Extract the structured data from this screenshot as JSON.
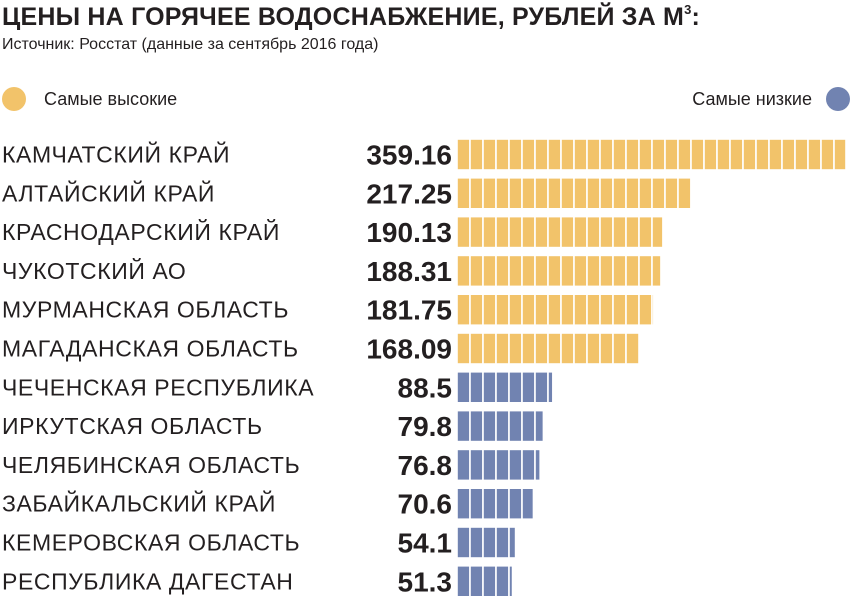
{
  "header": {
    "title": "ЦЕНЫ НА ГОРЯЧЕЕ ВОДОСНАБЖЕНИЕ, РУБЛЕЙ ЗА М",
    "title_sup": "3",
    "title_suffix": ":",
    "source": "Источник: Росстат (данные за сентябрь 2016 года)"
  },
  "legend": {
    "high": "Самые высокие",
    "low": "Самые низкие"
  },
  "colors": {
    "high": "#f2c36a",
    "low": "#7183b1",
    "text": "#231f20"
  },
  "chart_data": {
    "type": "bar",
    "orientation": "horizontal",
    "title": "ЦЕНЫ НА ГОРЯЧЕЕ ВОДОСНАБЖЕНИЕ, РУБЛЕЙ ЗА М3:",
    "categories": [
      "КАМЧАТСКИЙ КРАЙ",
      "АЛТАЙСКИЙ КРАЙ",
      "КРАСНОДАРСКИЙ КРАЙ",
      "ЧУКОТСКИЙ АО",
      "МУРМАНСКАЯ ОБЛАСТЬ",
      "МАГАДАНСКАЯ ОБЛАСТЬ",
      "ЧЕЧЕНСКАЯ РЕСПУБЛИКА",
      "ИРКУТСКАЯ ОБЛАСТЬ",
      "ЧЕЛЯБИНСКАЯ ОБЛАСТЬ",
      "ЗАБАЙКАЛЬСКИЙ КРАЙ",
      "КЕМЕРОВСКАЯ ОБЛАСТЬ",
      "РЕСПУБЛИКА ДАГЕСТАН"
    ],
    "value_labels": [
      "359.16",
      "217.25",
      "190.13",
      "188.31",
      "181.75",
      "168.09",
      "88.5",
      "79.8",
      "76.8",
      "70.6",
      "54.1",
      "51.3"
    ],
    "values": [
      359.16,
      217.25,
      190.13,
      188.31,
      181.75,
      168.09,
      88.5,
      79.8,
      76.8,
      70.6,
      54.1,
      51.3
    ],
    "groups": [
      "high",
      "high",
      "high",
      "high",
      "high",
      "high",
      "low",
      "low",
      "low",
      "low",
      "low",
      "low"
    ],
    "legend": [
      "Самые высокие",
      "Самые низкие"
    ],
    "xlabel": "",
    "ylabel": "",
    "grid": false
  }
}
